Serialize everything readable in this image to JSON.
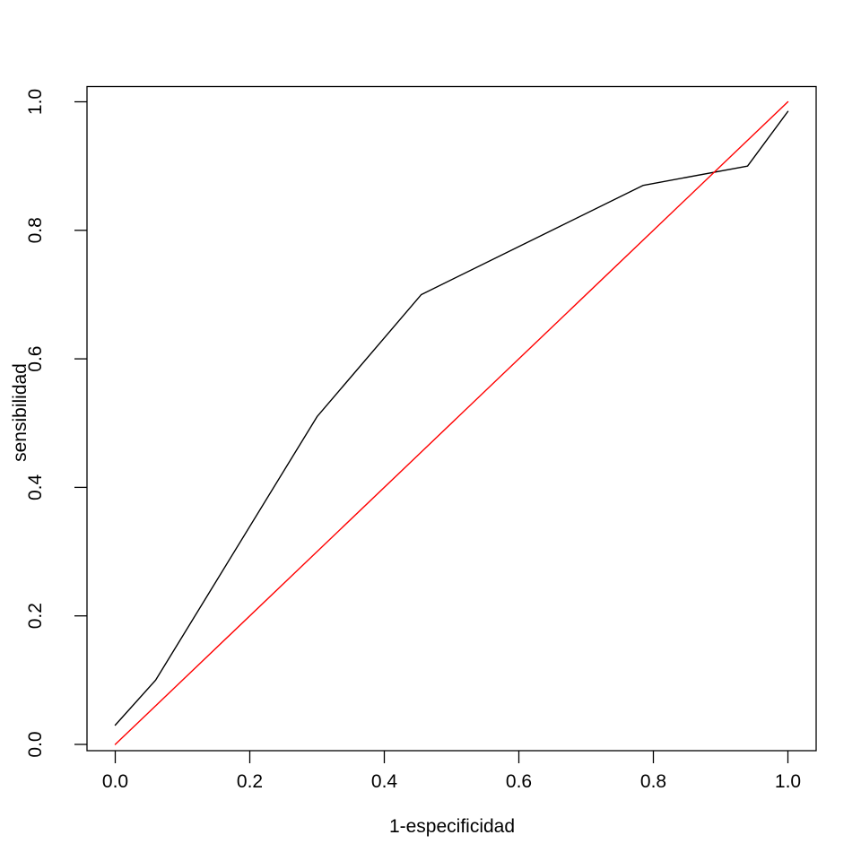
{
  "chart_data": {
    "type": "line",
    "title": "",
    "xlabel": "1-especificidad",
    "ylabel": "sensibilidad",
    "xlim": [
      0,
      1
    ],
    "ylim": [
      0,
      1
    ],
    "x_ticks": [
      {
        "value": 0.0,
        "label": "0.0"
      },
      {
        "value": 0.2,
        "label": "0.2"
      },
      {
        "value": 0.4,
        "label": "0.4"
      },
      {
        "value": 0.6,
        "label": "0.6"
      },
      {
        "value": 0.8,
        "label": "0.8"
      },
      {
        "value": 1.0,
        "label": "1.0"
      }
    ],
    "y_ticks": [
      {
        "value": 0.0,
        "label": "0.0"
      },
      {
        "value": 0.2,
        "label": "0.2"
      },
      {
        "value": 0.4,
        "label": "0.4"
      },
      {
        "value": 0.6,
        "label": "0.6"
      },
      {
        "value": 0.8,
        "label": "0.8"
      },
      {
        "value": 1.0,
        "label": "1.0"
      }
    ],
    "grid": false,
    "legend": "none",
    "axis_color": "#000000",
    "series": [
      {
        "name": "roc-curve",
        "color": "#000000",
        "x": [
          0.0,
          0.06,
          0.3,
          0.455,
          0.785,
          0.94,
          1.0
        ],
        "y": [
          0.03,
          0.1,
          0.51,
          0.7,
          0.87,
          0.9,
          0.985
        ]
      },
      {
        "name": "diagonal-reference-line",
        "color": "#ff0000",
        "x": [
          0.0,
          1.0
        ],
        "y": [
          0.0,
          1.0
        ]
      }
    ]
  }
}
